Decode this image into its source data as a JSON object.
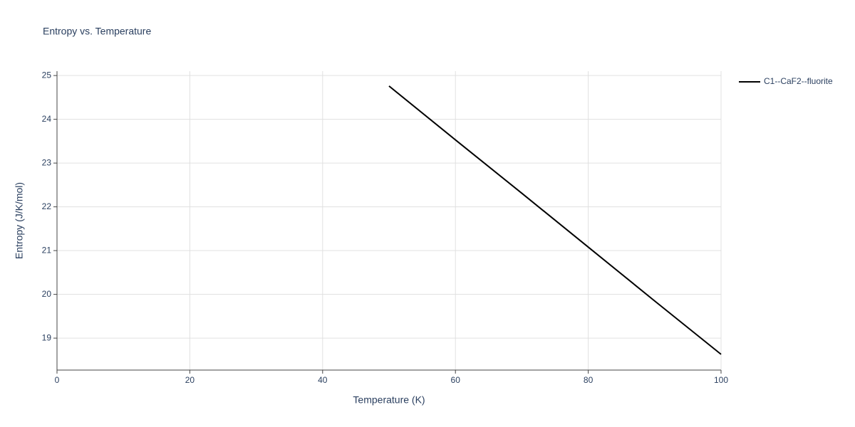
{
  "chart_data": {
    "type": "line",
    "title": "Entropy vs. Temperature",
    "x_label": "Temperature (K)",
    "y_label": "Entropy (J/K/mol)",
    "x": [
      50,
      60,
      70,
      80,
      90,
      100
    ],
    "series": [
      {
        "name": "C1--CaF2--fluorite",
        "color": "#000000",
        "values": [
          24.76,
          23.53,
          22.31,
          21.08,
          19.85,
          18.63
        ]
      }
    ],
    "xlim": [
      0,
      100
    ],
    "xticks": [
      0,
      20,
      40,
      60,
      80,
      100
    ],
    "ylim": [
      18.27,
      25.1
    ],
    "yticks": [
      19,
      20,
      21,
      22,
      23,
      24,
      25
    ],
    "grid": true,
    "legend": "right"
  }
}
